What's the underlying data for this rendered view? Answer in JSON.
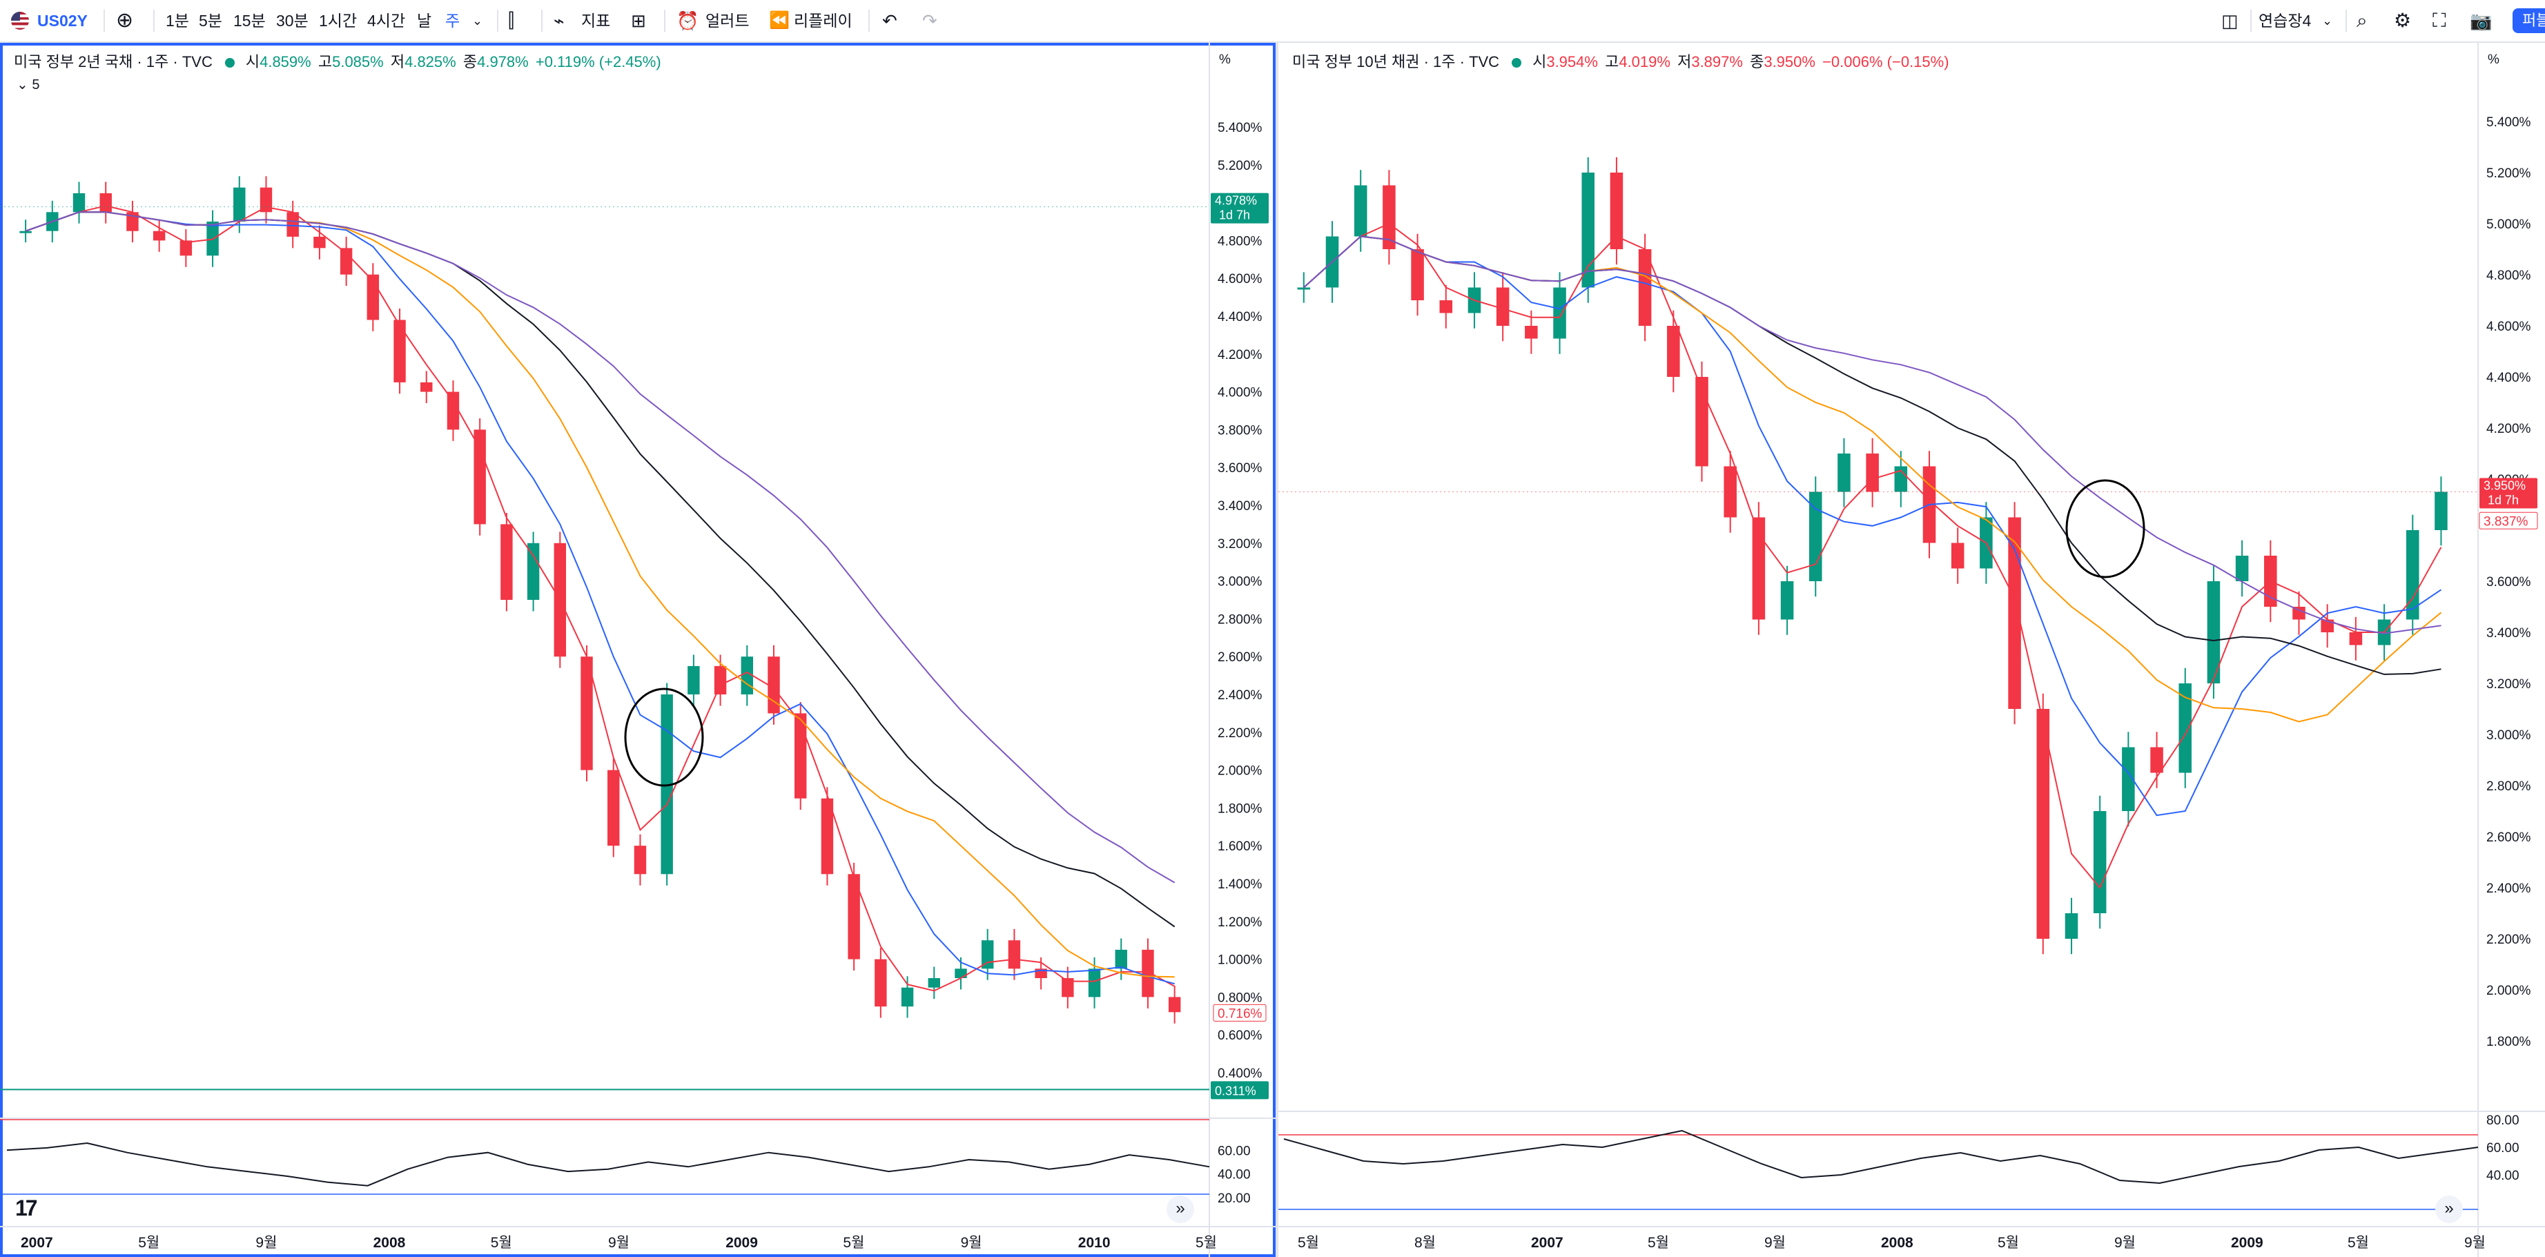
{
  "toolbar": {
    "symbol": "US02Y",
    "intervals": [
      "1분",
      "5분",
      "15분",
      "30분",
      "1시간",
      "4시간",
      "날",
      "주"
    ],
    "active_interval": "주",
    "indicators_label": "지표",
    "alert_label": "얼러트",
    "replay_label": "리플레이",
    "layout_name": "연습장4",
    "publish_label": "퍼블"
  },
  "left_pane": {
    "title": "미국 정부 2년 국채 · 1주 · TVC",
    "ohlc": {
      "o_label": "시",
      "o": "4.859%",
      "h_label": "고",
      "h": "5.085%",
      "l_label": "저",
      "l": "4.825%",
      "c_label": "종",
      "c": "4.978%",
      "chg": "+0.119% (+2.45%)"
    },
    "collapse_count": "5",
    "price_unit": "%",
    "y_ticks": [
      "5.400%",
      "5.200%",
      "4.800%",
      "4.600%",
      "4.400%",
      "4.200%",
      "4.000%",
      "3.800%",
      "3.600%",
      "3.400%",
      "3.200%",
      "3.000%",
      "2.800%",
      "2.600%",
      "2.400%",
      "2.200%",
      "2.000%",
      "1.800%",
      "1.600%",
      "1.400%",
      "1.200%",
      "1.000%",
      "0.800%",
      "0.600%",
      "0.400%"
    ],
    "last_price_tag": "4.978%",
    "countdown": "1d 7h",
    "close_tag": "0.716%",
    "low_tag": "0.311%",
    "rsi_ticks": [
      "60.00",
      "40.00",
      "20.00"
    ],
    "x_ticks": [
      "2007",
      "5월",
      "9월",
      "2008",
      "5월",
      "9월",
      "2009",
      "5월",
      "9월",
      "2010",
      "5월"
    ]
  },
  "right_pane": {
    "title": "미국 정부 10년 채권 · 1주 · TVC",
    "ohlc": {
      "o_label": "시",
      "o": "3.954%",
      "h_label": "고",
      "h": "4.019%",
      "l_label": "저",
      "l": "3.897%",
      "c_label": "종",
      "c": "3.950%",
      "chg": "−0.006% (−0.15%)"
    },
    "price_unit": "%",
    "y_ticks": [
      "5.400%",
      "5.200%",
      "5.000%",
      "4.800%",
      "4.600%",
      "4.400%",
      "4.200%",
      "4.000%",
      "3.600%",
      "3.400%",
      "3.200%",
      "3.000%",
      "2.800%",
      "2.600%",
      "2.400%",
      "2.200%",
      "2.000%",
      "1.800%"
    ],
    "last_price_tag": "3.950%",
    "countdown": "1d 7h",
    "ma_tag": "3.837%",
    "rsi_ticks": [
      "80.00",
      "60.00",
      "40.00"
    ],
    "x_ticks": [
      "5월",
      "8월",
      "2007",
      "5월",
      "9월",
      "2008",
      "5월",
      "9월",
      "2009",
      "5월",
      "9월"
    ]
  },
  "colors": {
    "up": "#089981",
    "down": "#f23645",
    "ma_red": "#f23645",
    "ma_blue": "#2962ff",
    "ma_orange": "#ff9800",
    "ma_black": "#131722",
    "ma_purple": "#7e57c2",
    "accent": "#2962ff"
  },
  "chart_data": [
    {
      "type": "candlestick",
      "title": "미국 정부 2년 국채 · 1주 · TVC",
      "ylim": [
        0.4,
        5.4
      ],
      "series": [
        {
          "name": "price",
          "values": [
            4.85,
            4.95,
            5.05,
            4.95,
            4.85,
            4.8,
            4.72,
            4.9,
            5.08,
            4.95,
            4.82,
            4.76,
            4.62,
            4.38,
            4.05,
            4.0,
            3.8,
            3.3,
            2.9,
            3.2,
            2.6,
            2.0,
            1.6,
            1.45,
            2.4,
            2.55,
            2.4,
            2.6,
            2.3,
            1.85,
            1.45,
            1.0,
            0.75,
            0.85,
            0.9,
            0.95,
            1.1,
            0.95,
            0.9,
            0.8,
            0.95,
            1.05,
            0.8,
            0.72
          ]
        },
        {
          "name": "rsi",
          "values": [
            60,
            62,
            66,
            58,
            52,
            46,
            42,
            38,
            33,
            30,
            44,
            54,
            58,
            48,
            42,
            44,
            50,
            46,
            52,
            58,
            54,
            48,
            42,
            46,
            52,
            50,
            44,
            48,
            56,
            52,
            46
          ]
        }
      ]
    },
    {
      "type": "candlestick",
      "title": "미국 정부 10년 채권 · 1주 · TVC",
      "ylim": [
        1.8,
        5.4
      ],
      "series": [
        {
          "name": "price",
          "values": [
            4.75,
            4.95,
            5.15,
            4.9,
            4.7,
            4.65,
            4.75,
            4.6,
            4.55,
            4.75,
            5.2,
            4.9,
            4.6,
            4.4,
            4.05,
            3.85,
            3.45,
            3.6,
            3.95,
            4.1,
            3.95,
            4.05,
            3.75,
            3.65,
            3.85,
            3.1,
            2.2,
            2.3,
            2.7,
            2.95,
            2.85,
            3.2,
            3.6,
            3.7,
            3.5,
            3.45,
            3.4,
            3.35,
            3.45,
            3.8,
            3.95
          ]
        },
        {
          "name": "rsi",
          "values": [
            66,
            58,
            50,
            48,
            50,
            54,
            58,
            62,
            60,
            66,
            72,
            60,
            48,
            38,
            40,
            46,
            52,
            56,
            50,
            54,
            48,
            36,
            34,
            40,
            46,
            50,
            58,
            60,
            52,
            56,
            60
          ]
        }
      ]
    }
  ]
}
